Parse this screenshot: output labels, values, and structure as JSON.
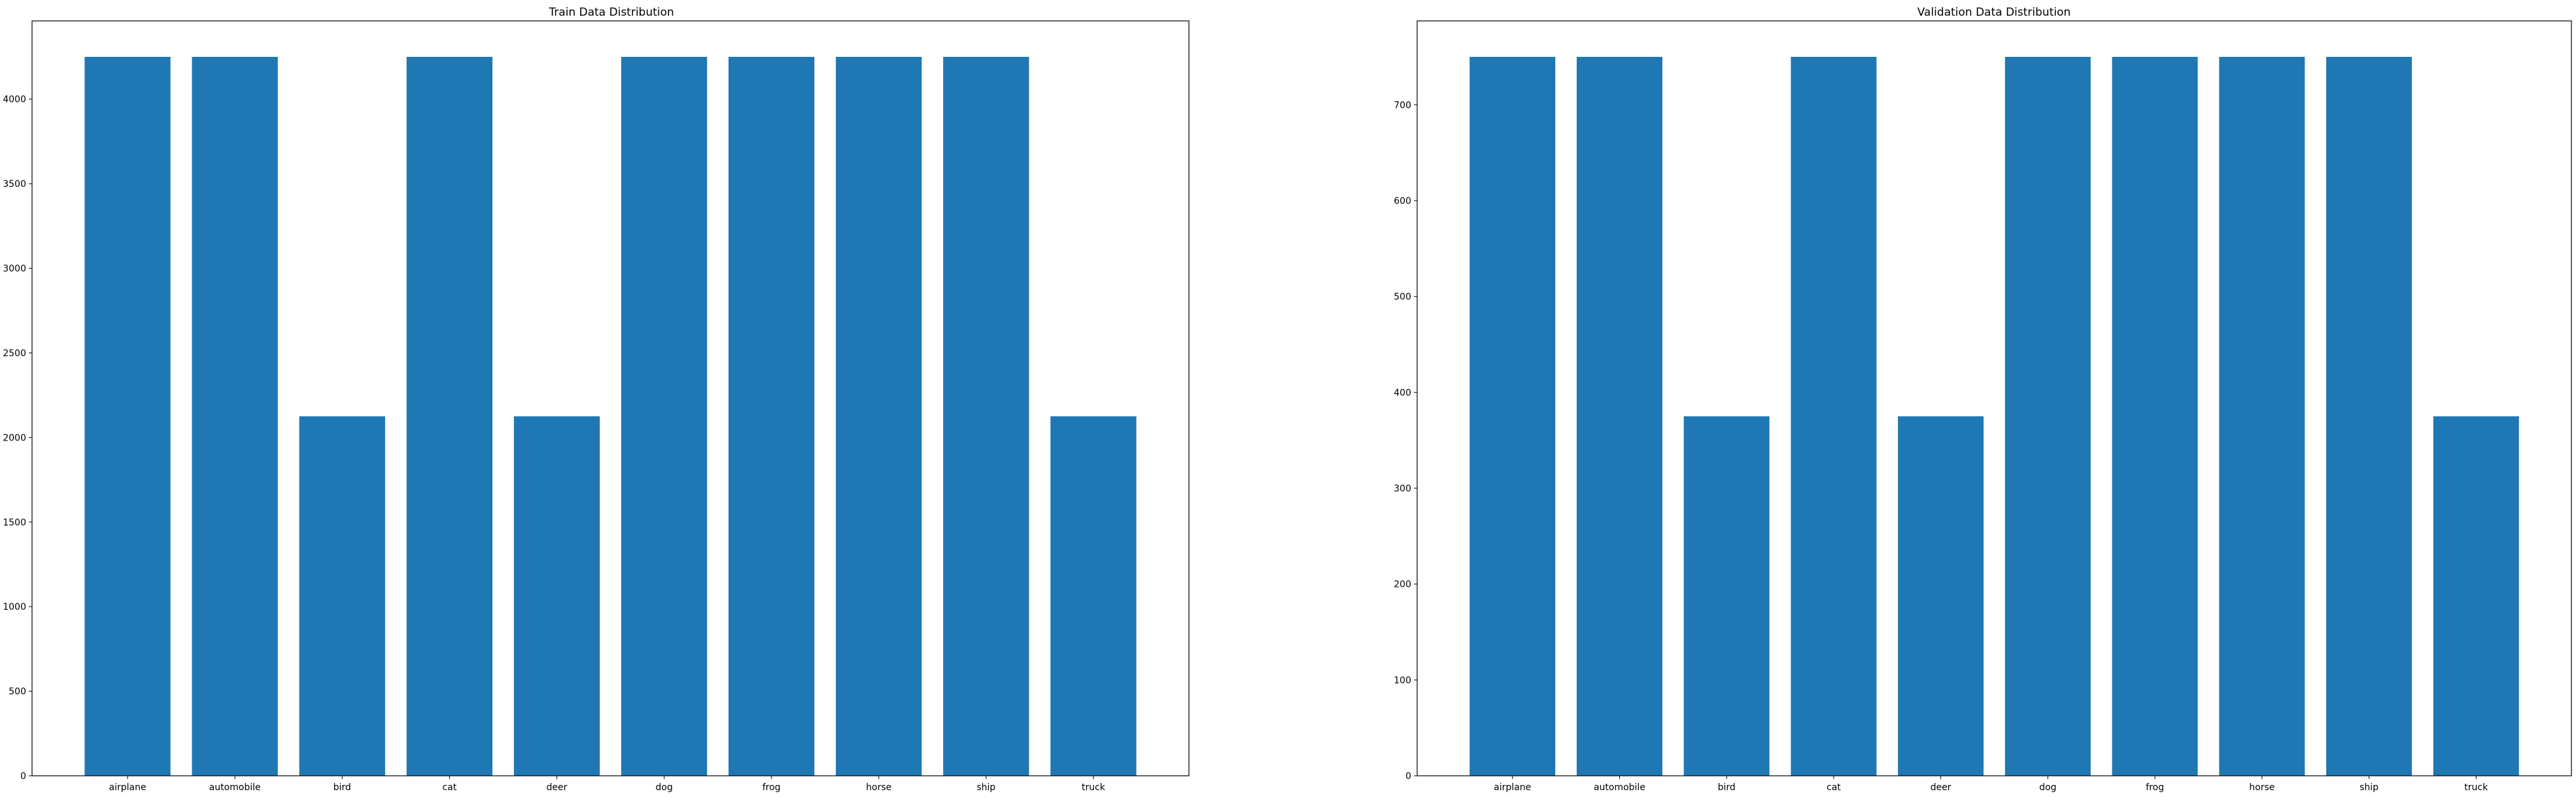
{
  "chart_data": [
    {
      "type": "bar",
      "title": "Train Data Distribution",
      "xlabel": "",
      "ylabel": "",
      "categories": [
        "airplane",
        "automobile",
        "bird",
        "cat",
        "deer",
        "dog",
        "frog",
        "horse",
        "ship",
        "truck"
      ],
      "values": [
        4250,
        4250,
        2125,
        4250,
        2125,
        4250,
        4250,
        4250,
        4250,
        2125
      ],
      "ylim": [
        0,
        4462.5
      ],
      "yticks": [
        0,
        500,
        1000,
        1500,
        2000,
        2500,
        3000,
        3500,
        4000
      ],
      "bar_color": "#1f77b4",
      "grid": false,
      "legend": "none"
    },
    {
      "type": "bar",
      "title": "Validation Data Distribution",
      "xlabel": "",
      "ylabel": "",
      "categories": [
        "airplane",
        "automobile",
        "bird",
        "cat",
        "deer",
        "dog",
        "frog",
        "horse",
        "ship",
        "truck"
      ],
      "values": [
        750,
        750,
        375,
        750,
        375,
        750,
        750,
        750,
        750,
        375
      ],
      "ylim": [
        0,
        787.5
      ],
      "yticks": [
        0,
        100,
        200,
        300,
        400,
        500,
        600,
        700
      ],
      "bar_color": "#1f77b4",
      "grid": false,
      "legend": "none"
    }
  ]
}
